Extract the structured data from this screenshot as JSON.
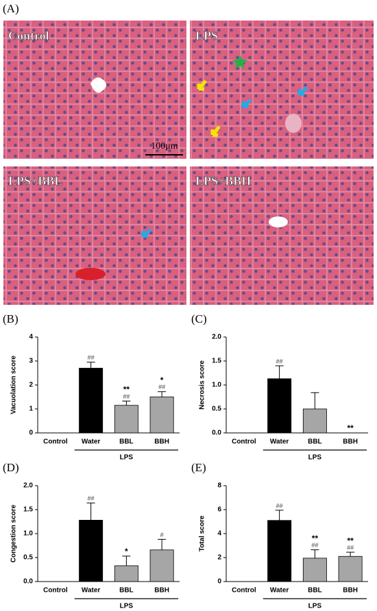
{
  "figure": {
    "panel_label": "(A)",
    "images": [
      {
        "label": "Control"
      },
      {
        "label": "LPS"
      },
      {
        "label": "LPS+BBL"
      },
      {
        "label": "LPS+BBH"
      }
    ],
    "scale_bar": "100μm"
  },
  "chart_data": [
    {
      "type": "bar",
      "panel_label": "(B)",
      "y_label": "Vacuolation score",
      "categories": [
        "Control",
        "Water",
        "BBL",
        "BBH"
      ],
      "group_label": "LPS",
      "values": [
        0,
        2.7,
        1.15,
        1.5
      ],
      "errors": [
        0,
        0.25,
        0.18,
        0.22
      ],
      "colors": [
        "#000000",
        "#000000",
        "#a6a6a6",
        "#a6a6a6"
      ],
      "annotations": [
        null,
        [
          "##"
        ],
        [
          "**",
          "##"
        ],
        [
          "*",
          "##"
        ]
      ],
      "ylim": [
        0,
        4
      ],
      "yticks": [
        0,
        1,
        2,
        3,
        4
      ]
    },
    {
      "type": "bar",
      "panel_label": "(C)",
      "y_label": "Necrosis score",
      "categories": [
        "Control",
        "Water",
        "BBL",
        "BBH"
      ],
      "group_label": "LPS",
      "values": [
        0,
        1.13,
        0.5,
        0
      ],
      "errors": [
        0,
        0.27,
        0.34,
        0
      ],
      "colors": [
        "#000000",
        "#000000",
        "#a6a6a6",
        "#a6a6a6"
      ],
      "annotations": [
        null,
        [
          "##"
        ],
        null,
        [
          "**"
        ]
      ],
      "ylim": [
        0,
        2
      ],
      "yticks": [
        {
          "value": 0,
          "label": "0.0"
        },
        0.5,
        {
          "value": 1,
          "label": "1.0"
        },
        1.5,
        {
          "value": 2,
          "label": "2.0"
        }
      ]
    },
    {
      "type": "bar",
      "panel_label": "(D)",
      "y_label": "Congestion score",
      "categories": [
        "Control",
        "Water",
        "BBL",
        "BBH"
      ],
      "group_label": "LPS",
      "values": [
        0,
        1.28,
        0.33,
        0.66
      ],
      "errors": [
        0,
        0.36,
        0.2,
        0.22
      ],
      "colors": [
        "#000000",
        "#000000",
        "#a6a6a6",
        "#a6a6a6"
      ],
      "annotations": [
        null,
        [
          "##"
        ],
        [
          "*"
        ],
        [
          "#"
        ]
      ],
      "ylim": [
        0,
        2
      ],
      "yticks": [
        {
          "value": 0,
          "label": "0.0"
        },
        0.5,
        {
          "value": 1,
          "label": "1.0"
        },
        1.5,
        {
          "value": 2,
          "label": "2.0"
        }
      ]
    },
    {
      "type": "bar",
      "panel_label": "(E)",
      "y_label": "Total score",
      "categories": [
        "Control",
        "Water",
        "BBL",
        "BBH"
      ],
      "group_label": "LPS",
      "values": [
        0,
        5.1,
        1.95,
        2.1
      ],
      "errors": [
        0,
        0.85,
        0.7,
        0.35
      ],
      "colors": [
        "#000000",
        "#000000",
        "#a6a6a6",
        "#a6a6a6"
      ],
      "annotations": [
        null,
        [
          "##"
        ],
        [
          "**",
          "##"
        ],
        [
          "**",
          "##"
        ]
      ],
      "ylim": [
        0,
        8
      ],
      "yticks": [
        0,
        2,
        4,
        6,
        8
      ]
    }
  ]
}
